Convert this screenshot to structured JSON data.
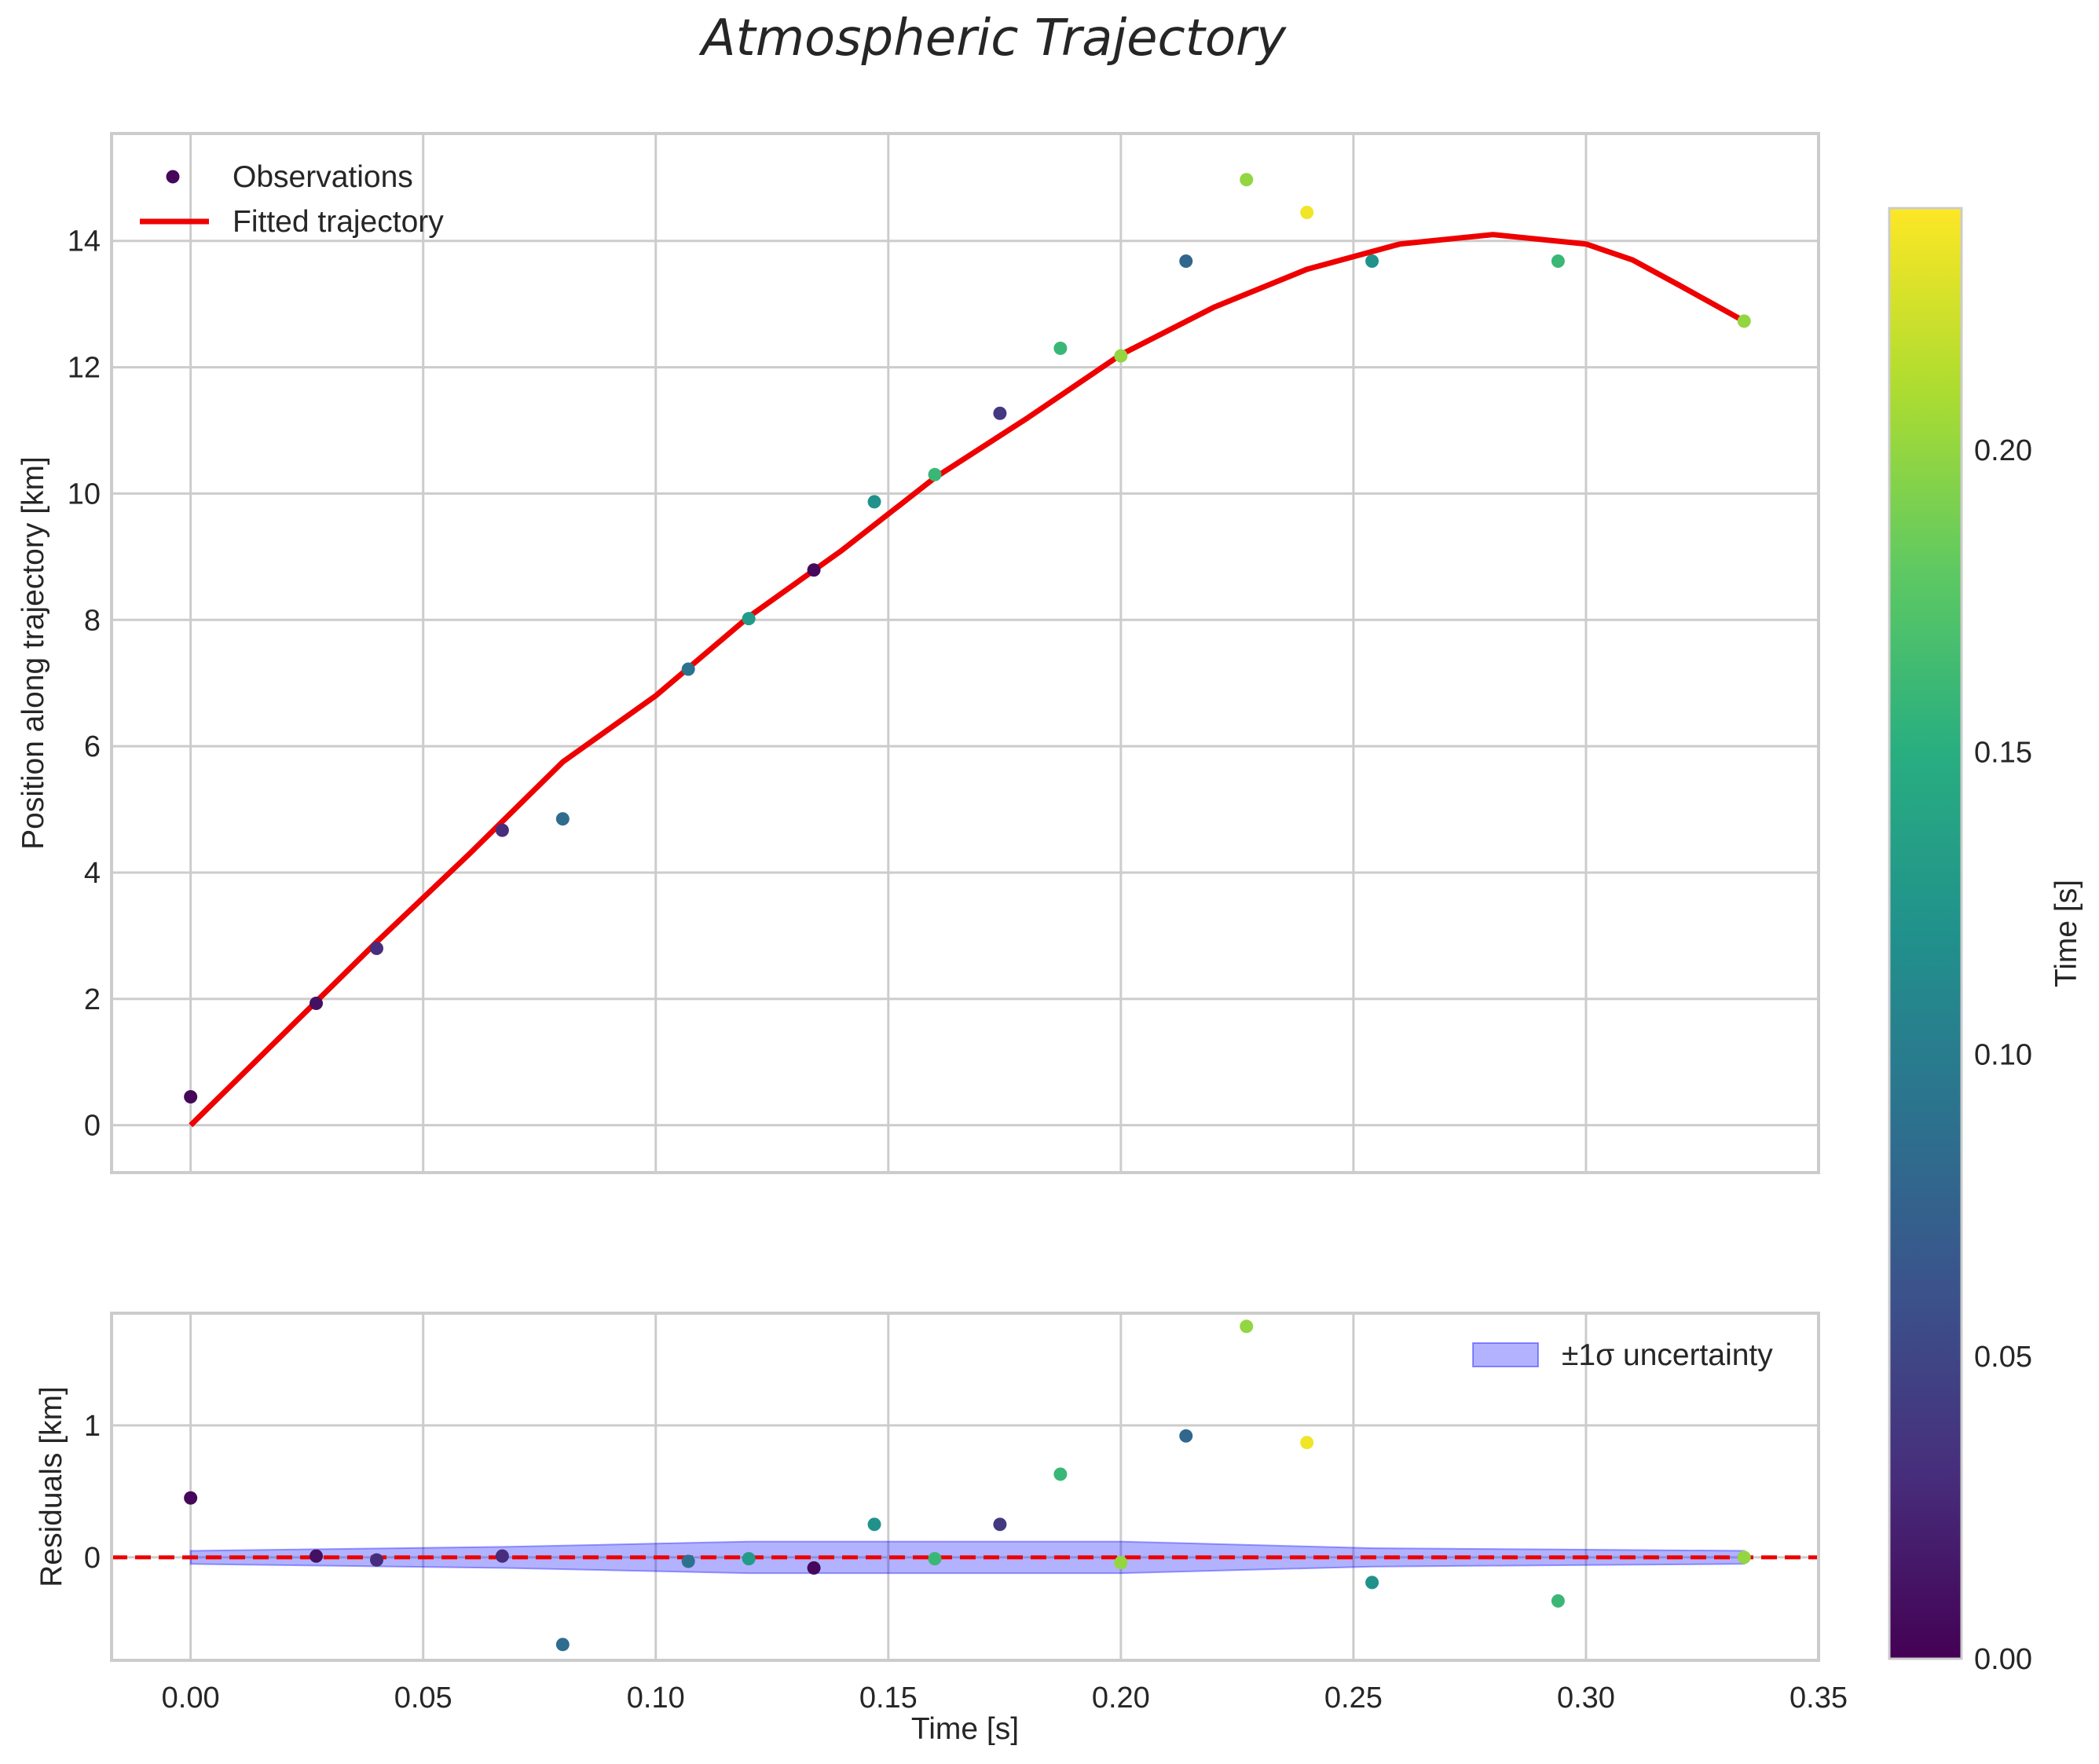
{
  "chart_data": [
    {
      "type": "scatter",
      "title": "Atmospheric Trajectory",
      "xlabel": "",
      "ylabel": "Position along trajectory [km]",
      "xlim": [
        -0.017,
        0.35
      ],
      "ylim": [
        -0.75,
        15.7
      ],
      "xticks": [
        0.0,
        0.05,
        0.1,
        0.15,
        0.2,
        0.25,
        0.3,
        0.35
      ],
      "xtick_labels": [
        "0.00",
        "0.05",
        "0.10",
        "0.15",
        "0.20",
        "0.25",
        "0.30",
        "0.35"
      ],
      "yticks": [
        0,
        2,
        4,
        6,
        8,
        10,
        12,
        14
      ],
      "ytick_labels": [
        "0",
        "2",
        "4",
        "6",
        "8",
        "10",
        "12",
        "14"
      ],
      "grid": true,
      "legend": {
        "placement": "top-left",
        "entries": [
          "Observations",
          "Fitted trajectory"
        ]
      },
      "series": [
        {
          "name": "Observations",
          "kind": "scatter",
          "x": [
            0.0,
            0.027,
            0.04,
            0.067,
            0.08,
            0.107,
            0.12,
            0.134,
            0.147,
            0.16,
            0.174,
            0.187,
            0.2,
            0.214,
            0.227,
            0.24,
            0.254,
            0.294,
            0.334
          ],
          "y": [
            0.45,
            1.93,
            2.8,
            4.67,
            4.85,
            7.22,
            8.02,
            8.79,
            9.87,
            10.3,
            11.27,
            12.3,
            12.18,
            13.68,
            14.97,
            14.45,
            13.68,
            13.68,
            12.73
          ],
          "color_value": [
            0.005,
            0.01,
            0.03,
            0.03,
            0.085,
            0.09,
            0.13,
            0.005,
            0.12,
            0.16,
            0.04,
            0.16,
            0.2,
            0.08,
            0.2,
            0.235,
            0.12,
            0.16,
            0.2
          ]
        },
        {
          "name": "Fitted trajectory",
          "kind": "line",
          "color": "#ee0000",
          "x": [
            0.0,
            0.02,
            0.04,
            0.06,
            0.08,
            0.1,
            0.12,
            0.14,
            0.16,
            0.18,
            0.2,
            0.22,
            0.24,
            0.26,
            0.28,
            0.3,
            0.31,
            0.32,
            0.334
          ],
          "y": [
            0.0,
            1.45,
            2.9,
            4.3,
            5.75,
            6.8,
            8.05,
            9.1,
            10.25,
            11.2,
            12.2,
            12.95,
            13.55,
            13.95,
            14.1,
            13.95,
            13.7,
            13.3,
            12.73
          ]
        }
      ]
    },
    {
      "type": "scatter",
      "title": "",
      "xlabel": "Time [s]",
      "ylabel": "Residuals [km]",
      "xlim": [
        -0.017,
        0.35
      ],
      "ylim": [
        -0.78,
        1.85
      ],
      "xticks": [
        0.0,
        0.05,
        0.1,
        0.15,
        0.2,
        0.25,
        0.3,
        0.35
      ],
      "xtick_labels": [
        "0.00",
        "0.05",
        "0.10",
        "0.15",
        "0.20",
        "0.25",
        "0.30",
        "0.35"
      ],
      "yticks": [
        0,
        1
      ],
      "ytick_labels": [
        "0",
        "1"
      ],
      "grid": true,
      "legend": {
        "placement": "top-right",
        "entries": [
          "±1σ uncertainty"
        ]
      },
      "reference_line": {
        "y": 0,
        "style": "dashed",
        "color": "#ee0000"
      },
      "series": [
        {
          "name": "Residuals",
          "kind": "scatter",
          "x": [
            0.0,
            0.027,
            0.04,
            0.067,
            0.08,
            0.107,
            0.12,
            0.134,
            0.147,
            0.16,
            0.174,
            0.187,
            0.2,
            0.214,
            0.227,
            0.24,
            0.254,
            0.294,
            0.334
          ],
          "y": [
            0.45,
            0.01,
            -0.02,
            0.01,
            -0.66,
            -0.03,
            -0.01,
            -0.08,
            0.25,
            -0.01,
            0.25,
            0.63,
            -0.04,
            0.92,
            1.75,
            0.87,
            -0.19,
            -0.33,
            0.0
          ],
          "color_value": [
            0.005,
            0.01,
            0.03,
            0.03,
            0.085,
            0.09,
            0.13,
            0.005,
            0.12,
            0.16,
            0.04,
            0.16,
            0.2,
            0.08,
            0.2,
            0.235,
            0.12,
            0.16,
            0.2
          ]
        },
        {
          "name": "±1σ uncertainty",
          "kind": "band",
          "color": "#0000ff",
          "x": [
            0.0,
            0.067,
            0.12,
            0.2,
            0.254,
            0.334
          ],
          "sigma": [
            0.05,
            0.08,
            0.12,
            0.12,
            0.07,
            0.05
          ]
        }
      ]
    },
    {
      "type": "colorbar",
      "label": "Time [s]",
      "colormap": "viridis",
      "range": [
        0.0,
        0.24
      ],
      "ticks": [
        0.0,
        0.05,
        0.1,
        0.15,
        0.2
      ],
      "tick_labels": [
        "0.00",
        "0.05",
        "0.10",
        "0.15",
        "0.20"
      ]
    }
  ]
}
